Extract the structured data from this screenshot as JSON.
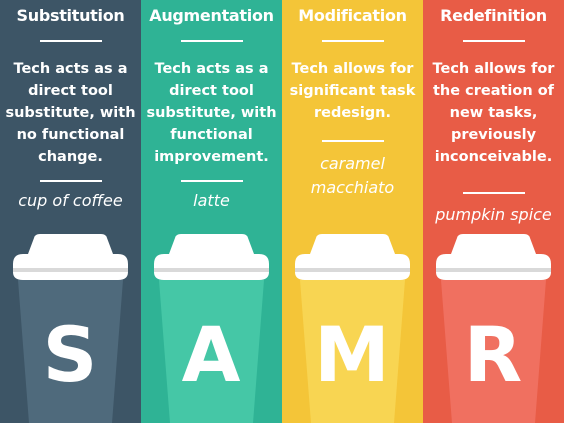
{
  "colors": {
    "substitution": "#3d5566",
    "augmentation": "#2fb395",
    "modification": "#f4c538",
    "redefinition": "#e85c46",
    "substitution_cup": "#4f6a7c",
    "augmentation_cup": "#45c7a6",
    "modification_cup": "#f8d552",
    "redefinition_cup": "#f07060",
    "lid": "#ffffff",
    "lid_shadow": "#d9d9d9"
  },
  "panels": [
    {
      "key": "substitution",
      "title": "Substitution",
      "description": "Tech acts as a\ndirect tool\nsubstitute, with\nno functional\nchange.",
      "drink": "cup of coffee",
      "letter": "S"
    },
    {
      "key": "augmentation",
      "title": "Augmentation",
      "description": "Tech acts as a\ndirect tool\nsubstitute, with\nfunctional\nimprovement.",
      "drink": "latte",
      "letter": "A"
    },
    {
      "key": "modification",
      "title": "Modification",
      "description": "Tech allows for\nsignificant task\nredesign.",
      "drink": "caramel\nmacchiato",
      "letter": "M"
    },
    {
      "key": "redefinition",
      "title": "Redefinition",
      "description": "Tech allows for\nthe creation of\nnew tasks,\npreviously\ninconceivable.",
      "drink": "pumpkin spice",
      "letter": "R"
    }
  ]
}
